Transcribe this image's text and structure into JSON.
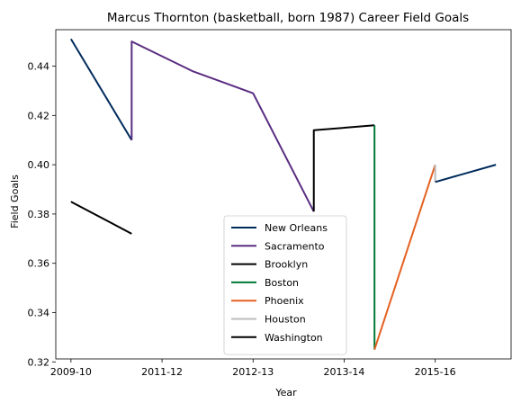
{
  "chart_data": {
    "type": "line",
    "title": "Marcus Thornton (basketball, born 1987) Career Field Goals",
    "xlabel": "Year",
    "ylabel": "Field Goals",
    "x_ticks": [
      "2009-10",
      "2011-12",
      "2012-13",
      "2013-14",
      "2015-16"
    ],
    "y_ticks": [
      "0.32",
      "0.34",
      "0.36",
      "0.38",
      "0.40",
      "0.42",
      "0.44"
    ],
    "xlim": [
      -0.25,
      7.25
    ],
    "ylim": [
      0.3212,
      0.4548
    ],
    "grid": false,
    "legend_position": "lower center",
    "series": [
      {
        "name": "New Orleans",
        "color": "#002b5c",
        "points": [
          [
            0,
            0.451
          ],
          [
            1,
            0.41
          ]
        ]
      },
      {
        "name": "Sacramento",
        "color": "#5a2d81",
        "points": [
          [
            1,
            0.41
          ],
          [
            1,
            0.45
          ],
          [
            2,
            0.438
          ],
          [
            3,
            0.429
          ],
          [
            4,
            0.381
          ]
        ]
      },
      {
        "name": "Brooklyn",
        "color": "#000000",
        "points": [
          [
            4,
            0.381
          ],
          [
            4,
            0.414
          ],
          [
            5,
            0.416
          ]
        ]
      },
      {
        "name": "Boston",
        "color": "#007a33",
        "points": [
          [
            5,
            0.416
          ],
          [
            5,
            0.325
          ]
        ]
      },
      {
        "name": "Phoenix",
        "color": "#e56020",
        "points": [
          [
            5,
            0.325
          ],
          [
            6,
            0.4
          ]
        ]
      },
      {
        "name": "Houston",
        "color": "#bbbbbb",
        "points": [
          [
            6,
            0.4
          ],
          [
            6,
            0.393
          ]
        ]
      },
      {
        "name": "Washington",
        "color": "#000000",
        "points": [
          [
            0,
            0.385
          ],
          [
            1,
            0.372
          ]
        ]
      },
      {
        "name": "",
        "color": "#002b5c",
        "points": [
          [
            6,
            0.393
          ],
          [
            7,
            0.4
          ]
        ]
      }
    ]
  }
}
